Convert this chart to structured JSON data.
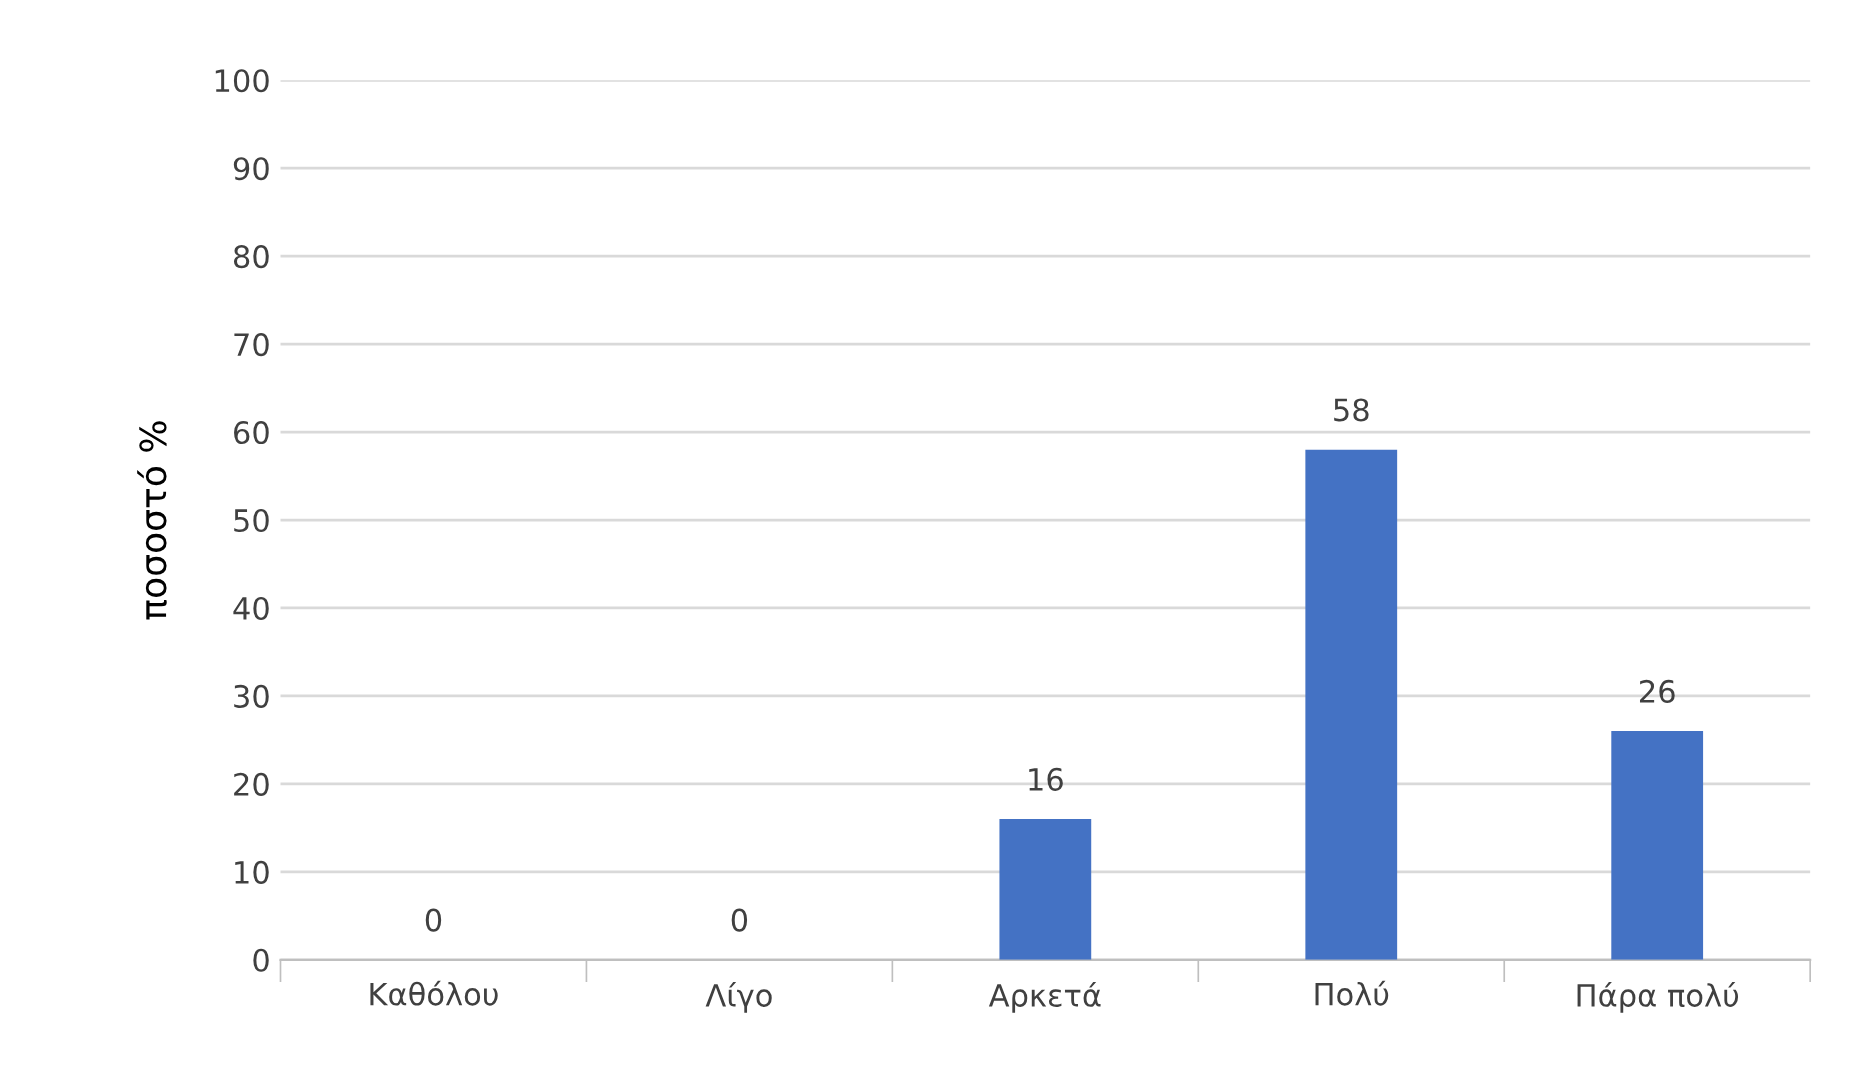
{
  "chart_data": {
    "type": "bar",
    "ylabel": "ποσοστό %",
    "categories": [
      "Καθόλου",
      "Λίγο",
      "Αρκετά",
      "Πολύ",
      "Πάρα πολύ"
    ],
    "values": [
      0,
      0,
      16,
      58,
      26
    ],
    "color": "#4472c4",
    "ylim": [
      0,
      100
    ],
    "yticks": [
      0,
      10,
      20,
      30,
      40,
      50,
      60,
      70,
      80,
      90,
      100
    ],
    "grid": "y",
    "data_labels": true
  }
}
